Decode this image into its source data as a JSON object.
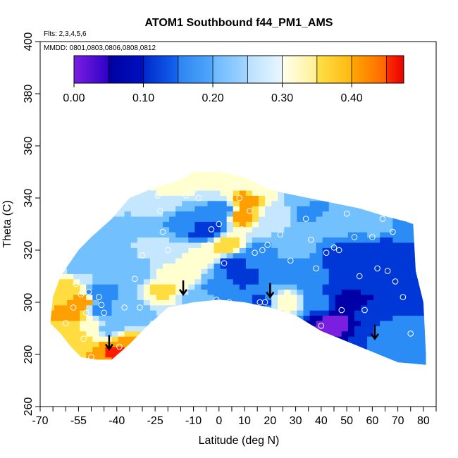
{
  "chart_data": {
    "type": "heatmap",
    "title": "ATOM1 Southbound f44_PM1_AMS",
    "annotations": [
      "Flts: 2,3,4,5,6",
      "MMDD: 0801,0803,0806,0808,0812"
    ],
    "xlabel": "Latitude (deg N)",
    "ylabel": "Theta (C)",
    "xlim": [
      -70,
      85
    ],
    "ylim": [
      260,
      400
    ],
    "x_ticks": [
      -70,
      -55,
      -40,
      -25,
      -10,
      0,
      10,
      20,
      30,
      40,
      50,
      60,
      70,
      80
    ],
    "x_minor_ticks": [
      -65,
      -60,
      -50,
      -45,
      -35,
      -30,
      -20,
      -15,
      -5,
      5,
      15,
      25,
      35,
      45,
      55,
      65,
      75,
      85
    ],
    "y_ticks": [
      260,
      280,
      300,
      320,
      340,
      360,
      380,
      400
    ],
    "grid": false,
    "legend": {
      "type": "colorbar",
      "placement": "top-left",
      "min": 0.0,
      "max": 0.475,
      "tick_values": [
        0.0,
        0.1,
        0.2,
        0.3,
        0.4
      ],
      "tick_labels": [
        "0.00",
        "0.10",
        "0.20",
        "0.30",
        "0.40"
      ],
      "boundaries": [
        0.0,
        0.05,
        0.1,
        0.15,
        0.2,
        0.25,
        0.3,
        0.35,
        0.4,
        0.45,
        0.475
      ],
      "colors": [
        "#7a1fe0",
        "#0000a8",
        "#0038d8",
        "#2b8cf5",
        "#73c0ff",
        "#c4e6ff",
        "#ffffd0",
        "#ffdc40",
        "#ffa000",
        "#ff1a00",
        "#b81414"
      ]
    },
    "color_points": [
      {
        "lat": -60,
        "theta": 305,
        "v": 0.36
      },
      {
        "lat": -58,
        "theta": 296,
        "v": 0.42
      },
      {
        "lat": -53,
        "theta": 300,
        "v": 0.45
      },
      {
        "lat": -50,
        "theta": 290,
        "v": 0.35
      },
      {
        "lat": -55,
        "theta": 283,
        "v": 0.4
      },
      {
        "lat": -47,
        "theta": 298,
        "v": 0.18
      },
      {
        "lat": -47,
        "theta": 303,
        "v": 0.16
      },
      {
        "lat": -40,
        "theta": 282,
        "v": 0.46
      },
      {
        "lat": -36,
        "theta": 285,
        "v": 0.42
      },
      {
        "lat": -43,
        "theta": 290,
        "v": 0.22
      },
      {
        "lat": -35,
        "theta": 295,
        "v": 0.2
      },
      {
        "lat": -55,
        "theta": 315,
        "v": 0.24
      },
      {
        "lat": -45,
        "theta": 318,
        "v": 0.22
      },
      {
        "lat": -35,
        "theta": 310,
        "v": 0.2
      },
      {
        "lat": -30,
        "theta": 330,
        "v": 0.24
      },
      {
        "lat": -25,
        "theta": 338,
        "v": 0.3
      },
      {
        "lat": -15,
        "theta": 345,
        "v": 0.32
      },
      {
        "lat": -5,
        "theta": 345,
        "v": 0.3
      },
      {
        "lat": 5,
        "theta": 345,
        "v": 0.31
      },
      {
        "lat": 12,
        "theta": 340,
        "v": 0.45
      },
      {
        "lat": 10,
        "theta": 333,
        "v": 0.43
      },
      {
        "lat": 15,
        "theta": 342,
        "v": 0.32
      },
      {
        "lat": 22,
        "theta": 335,
        "v": 0.28
      },
      {
        "lat": 30,
        "theta": 340,
        "v": 0.24
      },
      {
        "lat": -15,
        "theta": 330,
        "v": 0.18
      },
      {
        "lat": -5,
        "theta": 328,
        "v": 0.1
      },
      {
        "lat": -10,
        "theta": 333,
        "v": 0.2
      },
      {
        "lat": 0,
        "theta": 335,
        "v": 0.15
      },
      {
        "lat": 3,
        "theta": 322,
        "v": 0.4
      },
      {
        "lat": -5,
        "theta": 318,
        "v": 0.35
      },
      {
        "lat": -15,
        "theta": 310,
        "v": 0.33
      },
      {
        "lat": -22,
        "theta": 305,
        "v": 0.36
      },
      {
        "lat": -25,
        "theta": 322,
        "v": 0.26
      },
      {
        "lat": -8,
        "theta": 302,
        "v": 0.22
      },
      {
        "lat": 0,
        "theta": 305,
        "v": 0.15
      },
      {
        "lat": 5,
        "theta": 315,
        "v": 0.13
      },
      {
        "lat": 10,
        "theta": 310,
        "v": 0.14
      },
      {
        "lat": 15,
        "theta": 318,
        "v": 0.16
      },
      {
        "lat": 18,
        "theta": 300,
        "v": 0.14
      },
      {
        "lat": 25,
        "theta": 300,
        "v": 0.35
      },
      {
        "lat": 25,
        "theta": 315,
        "v": 0.2
      },
      {
        "lat": 30,
        "theta": 322,
        "v": 0.24
      },
      {
        "lat": 35,
        "theta": 312,
        "v": 0.16
      },
      {
        "lat": 40,
        "theta": 325,
        "v": 0.2
      },
      {
        "lat": 45,
        "theta": 330,
        "v": 0.22
      },
      {
        "lat": 48,
        "theta": 318,
        "v": 0.1
      },
      {
        "lat": 40,
        "theta": 300,
        "v": 0.16
      },
      {
        "lat": 45,
        "theta": 292,
        "v": 0.02
      },
      {
        "lat": 50,
        "theta": 300,
        "v": 0.07
      },
      {
        "lat": 55,
        "theta": 310,
        "v": 0.12
      },
      {
        "lat": 60,
        "theta": 295,
        "v": 0.12
      },
      {
        "lat": 60,
        "theta": 285,
        "v": 0.15
      },
      {
        "lat": 68,
        "theta": 290,
        "v": 0.17
      },
      {
        "lat": 75,
        "theta": 285,
        "v": 0.2
      },
      {
        "lat": 65,
        "theta": 320,
        "v": 0.13
      },
      {
        "lat": 72,
        "theta": 315,
        "v": 0.12
      },
      {
        "lat": 52,
        "theta": 334,
        "v": 0.2
      },
      {
        "lat": 62,
        "theta": 330,
        "v": 0.22
      },
      {
        "lat": 73,
        "theta": 330,
        "v": 0.18
      },
      {
        "lat": 78,
        "theta": 300,
        "v": 0.14
      },
      {
        "lat": 35,
        "theta": 335,
        "v": 0.18
      },
      {
        "lat": 20,
        "theta": 330,
        "v": 0.25
      }
    ],
    "sample_points": [
      [
        -60,
        292
      ],
      [
        -57,
        298
      ],
      [
        -56,
        307
      ],
      [
        -54,
        303
      ],
      [
        -52,
        296
      ],
      [
        -51,
        304
      ],
      [
        -53,
        286
      ],
      [
        -50,
        279
      ],
      [
        -47,
        302
      ],
      [
        -46,
        299
      ],
      [
        -45,
        296
      ],
      [
        -39,
        283
      ],
      [
        -37,
        298
      ],
      [
        -33,
        309
      ],
      [
        -31,
        298
      ],
      [
        -30,
        318
      ],
      [
        -24,
        341
      ],
      [
        -23,
        335
      ],
      [
        -22,
        327
      ],
      [
        -20,
        320
      ],
      [
        -13,
        341
      ],
      [
        -10,
        343
      ],
      [
        -8,
        340
      ],
      [
        -4,
        322
      ],
      [
        -3,
        328
      ],
      [
        -1,
        301
      ],
      [
        0,
        298
      ],
      [
        0,
        330
      ],
      [
        2,
        315
      ],
      [
        4,
        300
      ],
      [
        7,
        345
      ],
      [
        8,
        340
      ],
      [
        9,
        328
      ],
      [
        12,
        335
      ],
      [
        14,
        319
      ],
      [
        16,
        300
      ],
      [
        17,
        320
      ],
      [
        18,
        300
      ],
      [
        19,
        322
      ],
      [
        24,
        326
      ],
      [
        28,
        316
      ],
      [
        31,
        342
      ],
      [
        34,
        332
      ],
      [
        36,
        324
      ],
      [
        38,
        313
      ],
      [
        40,
        291
      ],
      [
        42,
        319
      ],
      [
        45,
        321
      ],
      [
        47,
        320
      ],
      [
        48,
        297
      ],
      [
        50,
        334
      ],
      [
        53,
        325
      ],
      [
        55,
        310
      ],
      [
        57,
        297
      ],
      [
        60,
        325
      ],
      [
        62,
        313
      ],
      [
        64,
        332
      ],
      [
        66,
        312
      ],
      [
        68,
        327
      ],
      [
        69,
        308
      ],
      [
        72,
        302
      ],
      [
        75,
        288
      ]
    ],
    "arrows": [
      {
        "lat": -43,
        "theta": 282
      },
      {
        "lat": -14,
        "theta": 303
      },
      {
        "lat": 20,
        "theta": 302
      },
      {
        "lat": 61,
        "theta": 286
      }
    ],
    "coverage": {
      "upper": [
        [
          -66,
          292
        ],
        [
          -65,
          302
        ],
        [
          -62,
          310
        ],
        [
          -55,
          320
        ],
        [
          -50,
          325
        ],
        [
          -42,
          332
        ],
        [
          -35,
          340
        ],
        [
          -25,
          344
        ],
        [
          -15,
          347
        ],
        [
          -10,
          350
        ],
        [
          0,
          350
        ],
        [
          10,
          348
        ],
        [
          18,
          344
        ],
        [
          25,
          342
        ],
        [
          35,
          340
        ],
        [
          45,
          338
        ],
        [
          55,
          336
        ],
        [
          65,
          333
        ],
        [
          73,
          331
        ],
        [
          76,
          330
        ],
        [
          77,
          312
        ],
        [
          80,
          300
        ],
        [
          81,
          280
        ]
      ],
      "lower": [
        [
          -66,
          292
        ],
        [
          -62,
          288
        ],
        [
          -58,
          283
        ],
        [
          -54,
          279
        ],
        [
          -48,
          278
        ],
        [
          -42,
          278
        ],
        [
          -35,
          284
        ],
        [
          -28,
          291
        ],
        [
          -20,
          298
        ],
        [
          -10,
          300
        ],
        [
          0,
          301
        ],
        [
          10,
          300
        ],
        [
          20,
          298
        ],
        [
          30,
          295
        ],
        [
          40,
          289
        ],
        [
          50,
          285
        ],
        [
          60,
          281
        ],
        [
          70,
          277
        ],
        [
          81,
          276
        ]
      ]
    }
  }
}
